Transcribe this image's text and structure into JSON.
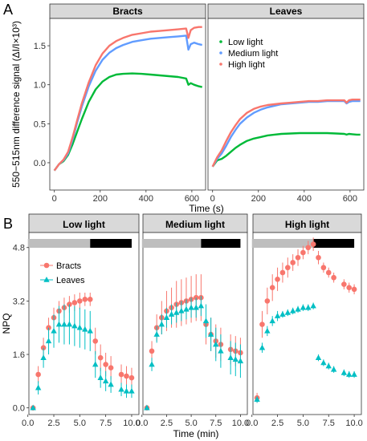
{
  "panels": {
    "a_label": "A",
    "b_label": "B"
  },
  "colors": {
    "low": "#00BA38",
    "medium": "#619CFF",
    "high": "#F8766D",
    "bracts": "#F8766D",
    "leaves": "#00BFC4",
    "dark_bar": "#000000",
    "light_bar": "#BEBEBE",
    "strip_fill": "#D9D9D9"
  },
  "chart_data": [
    {
      "type": "line",
      "panel": "A",
      "facets": [
        "Bracts",
        "Leaves"
      ],
      "xlabel": "Time (s)",
      "ylabel": "550−515nm difference signal (ΔI/I×10³)",
      "xlim": [
        -20,
        660
      ],
      "ylim": [
        -0.35,
        1.85
      ],
      "xticks": [
        "0",
        "200",
        "400",
        "600"
      ],
      "yticks": [
        "0.0",
        "0.5",
        "1.0",
        "1.5"
      ],
      "legend": {
        "placement": "inside-right",
        "entries": [
          "Low light",
          "Medium light",
          "High light"
        ]
      },
      "series_colors": [
        "#00BA38",
        "#619CFF",
        "#F8766D"
      ],
      "x": [
        0,
        20,
        40,
        60,
        80,
        100,
        120,
        150,
        180,
        210,
        240,
        270,
        300,
        340,
        380,
        420,
        460,
        500,
        540,
        575,
        585,
        595,
        610,
        630,
        645
      ],
      "series": [
        {
          "facet": "Bracts",
          "name": "Low light",
          "values": [
            -0.1,
            -0.02,
            0.02,
            0.1,
            0.24,
            0.4,
            0.56,
            0.78,
            0.94,
            1.04,
            1.1,
            1.13,
            1.14,
            1.145,
            1.14,
            1.13,
            1.12,
            1.11,
            1.1,
            1.08,
            1.0,
            1.02,
            1.0,
            0.98,
            0.97
          ]
        },
        {
          "facet": "Bracts",
          "name": "Medium light",
          "values": [
            -0.1,
            -0.02,
            0.03,
            0.12,
            0.3,
            0.52,
            0.72,
            0.98,
            1.18,
            1.32,
            1.41,
            1.47,
            1.51,
            1.55,
            1.57,
            1.59,
            1.6,
            1.61,
            1.62,
            1.63,
            1.45,
            1.52,
            1.54,
            1.52,
            1.51
          ]
        },
        {
          "facet": "Bracts",
          "name": "High light",
          "values": [
            -0.1,
            -0.02,
            0.04,
            0.14,
            0.33,
            0.55,
            0.76,
            1.03,
            1.25,
            1.4,
            1.5,
            1.56,
            1.6,
            1.64,
            1.66,
            1.68,
            1.69,
            1.7,
            1.71,
            1.72,
            1.6,
            1.7,
            1.73,
            1.74,
            1.74
          ]
        },
        {
          "facet": "Leaves",
          "name": "Low light",
          "values": [
            -0.05,
            0.03,
            0.05,
            0.09,
            0.14,
            0.19,
            0.23,
            0.28,
            0.31,
            0.33,
            0.35,
            0.36,
            0.37,
            0.375,
            0.38,
            0.38,
            0.38,
            0.38,
            0.375,
            0.37,
            0.36,
            0.37,
            0.365,
            0.36,
            0.36
          ]
        },
        {
          "facet": "Leaves",
          "name": "Medium light",
          "values": [
            -0.05,
            0.05,
            0.12,
            0.22,
            0.33,
            0.42,
            0.5,
            0.58,
            0.64,
            0.68,
            0.71,
            0.73,
            0.75,
            0.76,
            0.77,
            0.78,
            0.78,
            0.79,
            0.79,
            0.79,
            0.76,
            0.78,
            0.79,
            0.79,
            0.79
          ]
        },
        {
          "facet": "Leaves",
          "name": "High light",
          "values": [
            -0.05,
            0.07,
            0.16,
            0.28,
            0.39,
            0.48,
            0.56,
            0.64,
            0.69,
            0.72,
            0.74,
            0.75,
            0.76,
            0.77,
            0.78,
            0.79,
            0.79,
            0.8,
            0.8,
            0.8,
            0.77,
            0.8,
            0.81,
            0.81,
            0.81
          ]
        }
      ]
    },
    {
      "type": "scatter",
      "panel": "B",
      "facets": [
        "Low light",
        "Medium light",
        "High light"
      ],
      "xlabel": "Time (min)",
      "ylabel": "NPQ",
      "xlim": [
        0.1,
        10.7
      ],
      "ylim": [
        -0.2,
        5.25
      ],
      "xticks": [
        "0.0",
        "2.5",
        "5.0",
        "7.5",
        "10.0"
      ],
      "yticks": [
        "0.0",
        "1.6",
        "3.2",
        "4.8"
      ],
      "light_bar": {
        "light_until": 6,
        "dark_from": 6,
        "end": 10
      },
      "legend": {
        "placement": "top-left",
        "entries": [
          "Bracts",
          "Leaves"
        ]
      },
      "x": [
        0.5,
        1,
        1.5,
        2,
        2.5,
        3,
        3.5,
        4,
        4.5,
        5,
        5.5,
        6,
        6.5,
        7,
        7.5,
        8,
        9,
        9.5,
        10
      ],
      "series": [
        {
          "facet": "Low light",
          "name": "Bracts",
          "values": [
            0.0,
            1.0,
            1.8,
            2.4,
            2.7,
            2.9,
            3.0,
            3.1,
            3.15,
            3.2,
            3.25,
            3.25,
            2.0,
            1.5,
            1.3,
            1.2,
            1.0,
            0.95,
            0.9
          ],
          "error": [
            0.08,
            0.25,
            0.3,
            0.3,
            0.3,
            0.3,
            0.3,
            0.25,
            0.25,
            0.25,
            0.2,
            0.2,
            0.4,
            0.4,
            0.35,
            0.35,
            0.3,
            0.3,
            0.3
          ]
        },
        {
          "facet": "Low light",
          "name": "Leaves",
          "values": [
            0.0,
            0.6,
            1.5,
            2.0,
            2.3,
            2.5,
            2.5,
            2.5,
            2.45,
            2.4,
            2.35,
            2.3,
            1.3,
            0.9,
            0.8,
            0.7,
            0.55,
            0.5,
            0.5
          ],
          "error": [
            0.05,
            0.2,
            0.3,
            0.4,
            0.5,
            0.55,
            0.6,
            0.6,
            0.6,
            0.6,
            0.6,
            0.6,
            0.4,
            0.3,
            0.3,
            0.25,
            0.2,
            0.2,
            0.2
          ]
        },
        {
          "facet": "Medium light",
          "name": "Bracts",
          "values": [
            0.0,
            1.7,
            2.4,
            2.7,
            2.9,
            3.0,
            3.1,
            3.15,
            3.2,
            3.25,
            3.3,
            3.3,
            2.5,
            2.2,
            2.0,
            1.9,
            1.75,
            1.7,
            1.65
          ],
          "error": [
            0.05,
            0.3,
            0.4,
            0.5,
            0.6,
            0.6,
            0.7,
            0.7,
            0.7,
            0.7,
            0.7,
            0.7,
            0.6,
            0.5,
            0.5,
            0.5,
            0.45,
            0.45,
            0.45
          ]
        },
        {
          "facet": "Medium light",
          "name": "Leaves",
          "values": [
            0.0,
            1.3,
            2.2,
            2.5,
            2.7,
            2.8,
            2.85,
            2.9,
            2.95,
            3.0,
            3.0,
            3.05,
            2.6,
            2.2,
            1.9,
            1.7,
            1.5,
            1.45,
            1.4
          ],
          "error": [
            0.05,
            0.2,
            0.25,
            0.3,
            0.3,
            0.3,
            0.3,
            0.3,
            0.3,
            0.3,
            0.3,
            0.3,
            0.5,
            0.5,
            0.5,
            0.5,
            0.5,
            0.5,
            0.5
          ]
        },
        {
          "facet": "High light",
          "name": "Bracts",
          "values": [
            0.3,
            2.5,
            3.2,
            3.6,
            3.85,
            4.05,
            4.2,
            4.35,
            4.5,
            4.65,
            4.8,
            4.9,
            4.5,
            4.2,
            4.05,
            3.9,
            3.7,
            3.6,
            3.55
          ],
          "error": [
            0.15,
            0.4,
            0.4,
            0.4,
            0.35,
            0.3,
            0.3,
            0.25,
            0.25,
            0.2,
            0.2,
            0.2,
            0.2,
            0.15,
            0.15,
            0.15,
            0.15,
            0.15,
            0.15
          ]
        },
        {
          "facet": "High light",
          "name": "Leaves",
          "values": [
            0.25,
            1.8,
            2.3,
            2.6,
            2.75,
            2.8,
            2.85,
            2.9,
            2.95,
            3.0,
            3.0,
            3.05,
            1.5,
            1.35,
            1.25,
            1.15,
            1.05,
            1.0,
            1.0
          ],
          "error": [
            0.1,
            0.15,
            0.15,
            0.15,
            0.15,
            0.1,
            0.1,
            0.1,
            0.1,
            0.1,
            0.1,
            0.1,
            0.1,
            0.1,
            0.1,
            0.1,
            0.1,
            0.1,
            0.1
          ]
        }
      ]
    }
  ]
}
